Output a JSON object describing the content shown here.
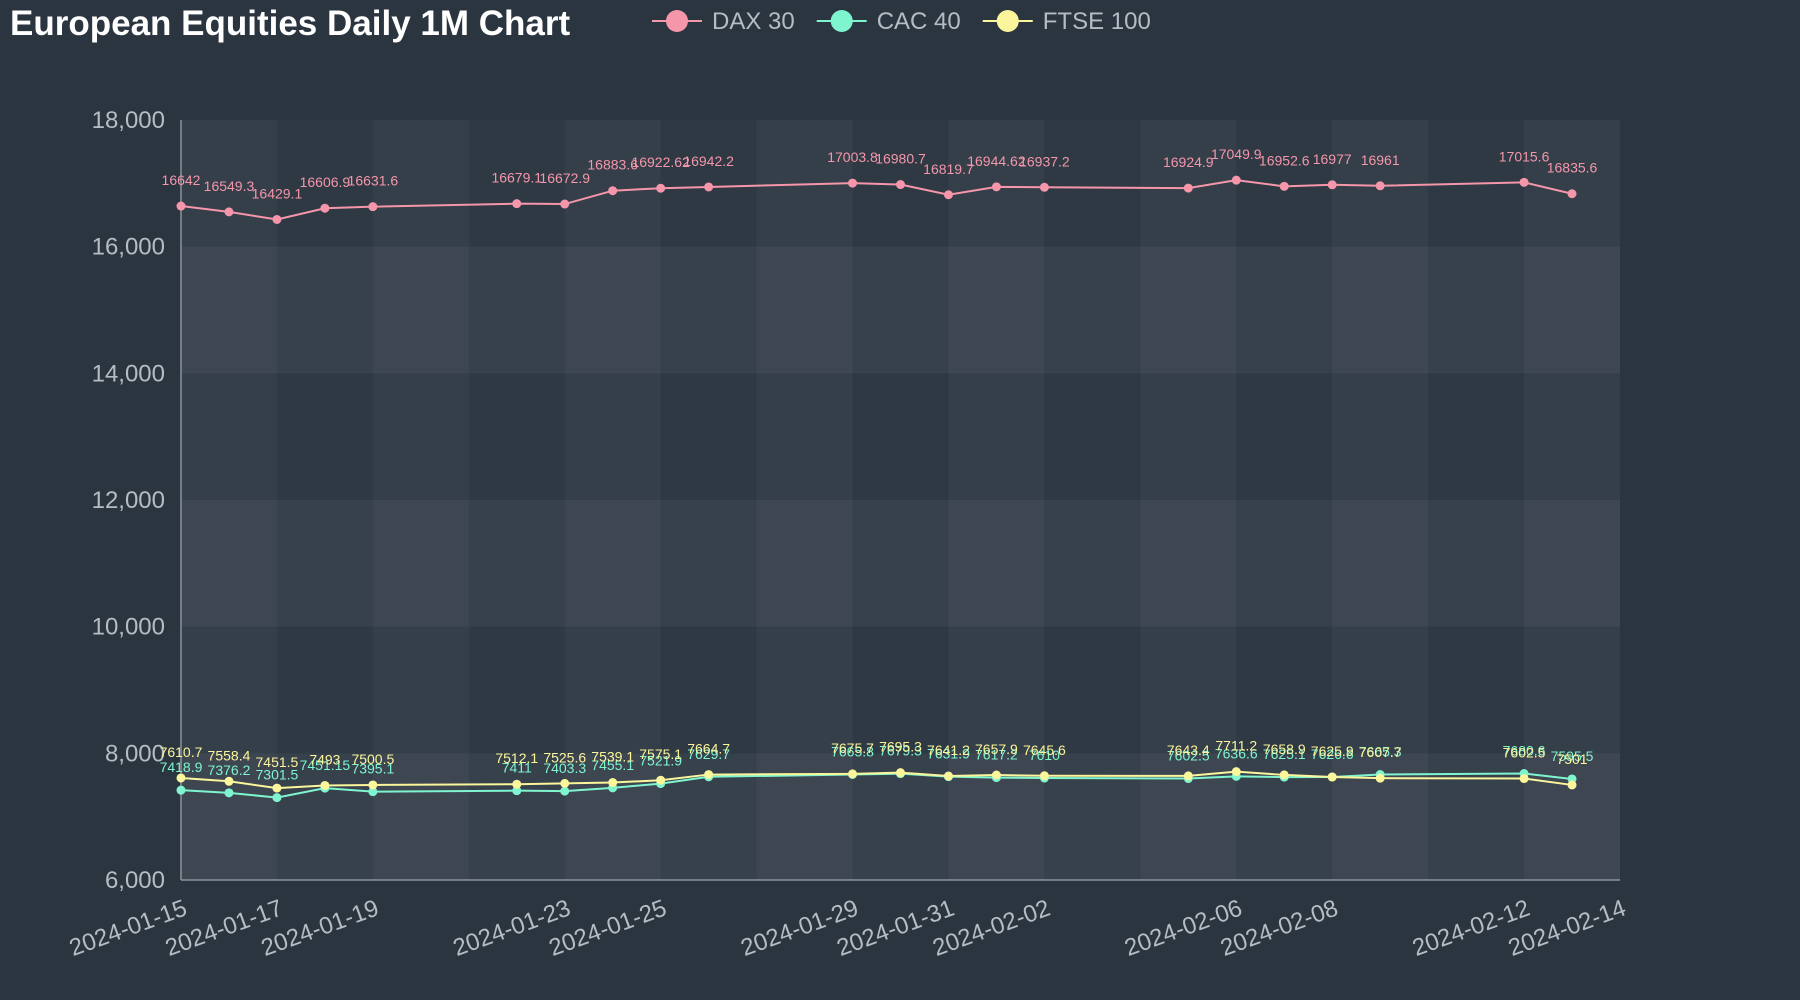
{
  "chart_data": {
    "type": "line",
    "title": "European Equities Daily 1M Chart",
    "xlabel": "",
    "ylabel": "",
    "ylim": [
      6000,
      18000
    ],
    "yticks": [
      "6,000",
      "8,000",
      "10,000",
      "12,000",
      "14,000",
      "16,000",
      "18,000"
    ],
    "yticks_values": [
      6000,
      8000,
      10000,
      12000,
      14000,
      16000,
      18000
    ],
    "xlim": [
      "2024-01-15",
      "2024-02-14"
    ],
    "xticks": [
      "2024-01-15",
      "2024-01-17",
      "2024-01-19",
      "2024-01-23",
      "2024-01-25",
      "2024-01-29",
      "2024-01-31",
      "2024-02-02",
      "2024-02-06",
      "2024-02-08",
      "2024-02-12",
      "2024-02-14"
    ],
    "x": [
      "2024-01-15",
      "2024-01-16",
      "2024-01-17",
      "2024-01-18",
      "2024-01-19",
      "2024-01-22",
      "2024-01-23",
      "2024-01-24",
      "2024-01-25",
      "2024-01-26",
      "2024-01-29",
      "2024-01-30",
      "2024-01-31",
      "2024-02-01",
      "2024-02-02",
      "2024-02-05",
      "2024-02-06",
      "2024-02-07",
      "2024-02-08",
      "2024-02-09",
      "2024-02-12",
      "2024-02-13"
    ],
    "legend_position": "top",
    "grid": "alternating-bands",
    "series": [
      {
        "name": "DAX 30",
        "color": "#f596aa",
        "values": [
          16642,
          16549.3,
          16429.1,
          16606.9,
          16631.6,
          16679.1,
          16672.9,
          16883.6,
          16922.62,
          16942.2,
          17003.8,
          16980.7,
          16819.7,
          16944.62,
          16937.2,
          16924.9,
          17049.9,
          16952.6,
          16977,
          16961,
          17015.6,
          16835.6
        ]
      },
      {
        "name": "CAC 40",
        "color": "#7ff5cf",
        "values": [
          7418.9,
          7376.2,
          7301.5,
          7451.15,
          7395.1,
          7411,
          7403.3,
          7455.1,
          7521.9,
          7629.7,
          7665.8,
          7679.3,
          7631.9,
          7617.2,
          7610,
          7602.5,
          7636.6,
          7625.1,
          7626.6,
          7665.3,
          7680.6,
          7595.5
        ]
      },
      {
        "name": "FTSE 100",
        "color": "#fbf59b",
        "values": [
          7610.7,
          7558.4,
          7451.5,
          7493,
          7500.5,
          7512.1,
          7525.6,
          7539.1,
          7575.1,
          7664.7,
          7675.7,
          7695.3,
          7641.2,
          7657.9,
          7645.6,
          7643.4,
          7711.2,
          7658.9,
          7625.9,
          7607.7,
          7602.5,
          7501
        ]
      }
    ]
  }
}
